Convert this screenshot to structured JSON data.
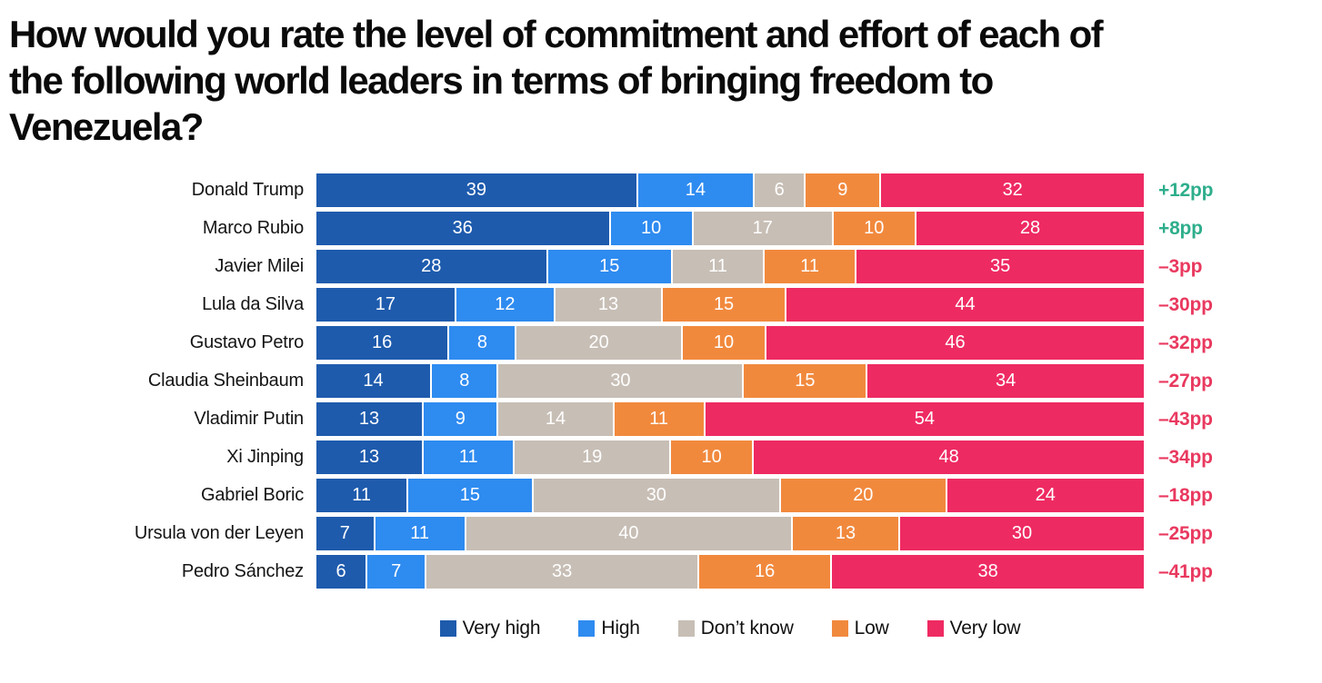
{
  "page": {
    "title_lines": [
      "How would you rate the level of commitment and effort of each of",
      "the following world leaders in terms of bringing freedom to",
      "Venezuela?"
    ]
  },
  "chart_data": {
    "type": "bar",
    "subtype": "horizontal_stacked_100",
    "title": "How would you rate the level of commitment and effort of each of the following world leaders in terms of bringing freedom to Venezuela?",
    "legend_position": "bottom",
    "axis": {
      "value_range": [
        0,
        100
      ],
      "gridlines": false,
      "value_labels_inside_bars": true
    },
    "categories": [
      "Very high",
      "High",
      "Don’t know",
      "Low",
      "Very low"
    ],
    "series_colors": [
      "#1E5BAD",
      "#2E8BF0",
      "#C7BEB5",
      "#F1893D",
      "#EE2A62"
    ],
    "net_change_header": "",
    "net_positive_color": "#2EAE8C",
    "net_negative_color": "#E9395F",
    "rows": [
      {
        "leader": "Donald Trump",
        "values": [
          39,
          14,
          6,
          9,
          32
        ],
        "net": "+12pp",
        "net_sign": "positive"
      },
      {
        "leader": "Marco Rubio",
        "values": [
          36,
          10,
          17,
          10,
          28
        ],
        "net": "+8pp",
        "net_sign": "positive"
      },
      {
        "leader": "Javier Milei",
        "values": [
          28,
          15,
          11,
          11,
          35
        ],
        "net": "–3pp",
        "net_sign": "negative"
      },
      {
        "leader": "Lula da Silva",
        "values": [
          17,
          12,
          13,
          15,
          44
        ],
        "net": "–30pp",
        "net_sign": "negative"
      },
      {
        "leader": "Gustavo Petro",
        "values": [
          16,
          8,
          20,
          10,
          46
        ],
        "net": "–32pp",
        "net_sign": "negative"
      },
      {
        "leader": "Claudia Sheinbaum",
        "values": [
          14,
          8,
          30,
          15,
          34
        ],
        "net": "–27pp",
        "net_sign": "negative"
      },
      {
        "leader": "Vladimir Putin",
        "values": [
          13,
          9,
          14,
          11,
          54
        ],
        "net": "–43pp",
        "net_sign": "negative"
      },
      {
        "leader": "Xi Jinping",
        "values": [
          13,
          11,
          19,
          10,
          48
        ],
        "net": "–34pp",
        "net_sign": "negative"
      },
      {
        "leader": "Gabriel Boric",
        "values": [
          11,
          15,
          30,
          20,
          24
        ],
        "net": "–18pp",
        "net_sign": "negative"
      },
      {
        "leader": "Ursula von der Leyen",
        "values": [
          7,
          11,
          40,
          13,
          30
        ],
        "net": "–25pp",
        "net_sign": "negative"
      },
      {
        "leader": "Pedro Sánchez",
        "values": [
          6,
          7,
          33,
          16,
          38
        ],
        "net": "–41pp",
        "net_sign": "negative"
      }
    ]
  }
}
